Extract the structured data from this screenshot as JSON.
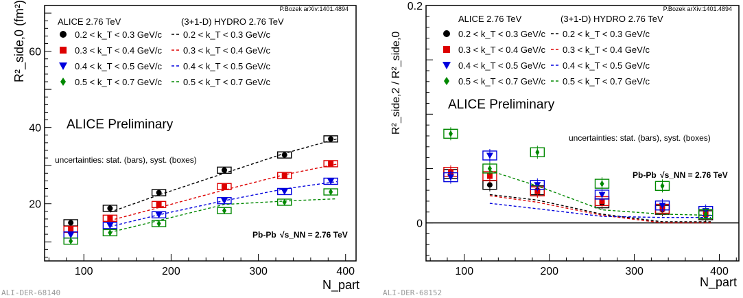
{
  "chart_data": [
    {
      "type": "scatter",
      "panel_id": "ALI-DER-68140",
      "attribution": "P.Bozek arXiv:1401.4894",
      "xlabel": "N_part",
      "ylabel": "R²_side,0 (fm²)",
      "xlim": [
        55,
        412
      ],
      "ylim": [
        5,
        72
      ],
      "xticks": [
        100,
        200,
        300,
        400
      ],
      "yticks": [
        20,
        40,
        60
      ],
      "legend_header_data": "ALICE 2.76 TeV",
      "legend_header_model": "(3+1-D) HYDRO 2.76 TeV",
      "preliminary": "ALICE Preliminary",
      "uncertainties": "uncertainties: stat. (bars), syst. (boxes)",
      "system_label": "Pb-Pb",
      "energy_label": "√s_NN = 2.76 TeV",
      "x": [
        85,
        130,
        186,
        261,
        330,
        383
      ],
      "series": [
        {
          "name": "0.2 < k_T < 0.3 GeV/c",
          "color": "#000000",
          "marker": "circle",
          "values": [
            15.0,
            18.8,
            22.9,
            28.8,
            32.8,
            37.0
          ],
          "model_x": [
            130,
            186,
            261,
            330,
            390
          ],
          "model": [
            17.8,
            22.3,
            28.0,
            33.2,
            37.0
          ]
        },
        {
          "name": "0.3 < k_T < 0.4 GeV/c",
          "color": "#dd0000",
          "marker": "square",
          "values": [
            13.3,
            16.2,
            19.8,
            24.5,
            27.4,
            30.5
          ],
          "model_x": [
            130,
            186,
            261,
            330,
            390
          ],
          "model": [
            15.6,
            19.0,
            23.6,
            27.6,
            30.4
          ]
        },
        {
          "name": "0.4 < k_T < 0.5 GeV/c",
          "color": "#0000dd",
          "marker": "triangle-down",
          "values": [
            11.8,
            14.3,
            17.1,
            20.8,
            23.2,
            25.9
          ],
          "model_x": [
            130,
            186,
            261,
            330,
            390
          ],
          "model": [
            14.0,
            17.1,
            20.8,
            23.9,
            25.8
          ]
        },
        {
          "name": "0.5 < k_T < 0.7 GeV/c",
          "color": "#008800",
          "marker": "diamond",
          "values": [
            10.2,
            12.4,
            14.8,
            18.2,
            20.4,
            23.1
          ],
          "model_x": [
            130,
            186,
            261,
            330,
            390
          ],
          "model": [
            12.5,
            15.6,
            19.8,
            20.7,
            21.3
          ]
        }
      ]
    },
    {
      "type": "scatter",
      "panel_id": "ALI-DER-68152",
      "attribution": "P.Bozek arXiv:1401.4894",
      "xlabel": "N_part",
      "ylabel": "R²_side,2 / R²_side,0",
      "xlim": [
        55,
        423
      ],
      "ylim": [
        -0.035,
        0.2
      ],
      "xticks": [
        100,
        200,
        300,
        400
      ],
      "yticks": [
        0,
        0.2
      ],
      "legend_header_data": "ALICE 2.76 TeV",
      "legend_header_model": "(3+1-D) HYDRO 2.76 TeV",
      "preliminary": "ALICE Preliminary",
      "uncertainties": "uncertainties: stat. (bars), syst. (boxes)",
      "system_label": "Pb-Pb",
      "energy_label": "√s_NN = 2.76 TeV",
      "x": [
        84,
        130,
        186,
        262,
        333,
        384
      ],
      "series": [
        {
          "name": "0.2 < k_T < 0.3 GeV/c",
          "color": "#000000",
          "marker": "circle",
          "values": [
            0.045,
            0.035,
            0.03,
            0.018,
            0.012,
            0.007
          ],
          "model_x": [
            130,
            186,
            262,
            333,
            390
          ],
          "model": [
            0.026,
            0.021,
            0.008,
            0.001,
            0.001
          ]
        },
        {
          "name": "0.3 < k_T < 0.4 GeV/c",
          "color": "#dd0000",
          "marker": "square",
          "values": [
            0.047,
            0.043,
            0.029,
            0.02,
            0.013,
            0.008
          ],
          "model_x": [
            130,
            186,
            262,
            333,
            390
          ],
          "model": [
            0.025,
            0.019,
            0.007,
            0.0,
            0.0
          ]
        },
        {
          "name": "0.4 < k_T < 0.5 GeV/c",
          "color": "#0000dd",
          "marker": "triangle-down",
          "values": [
            0.042,
            0.062,
            0.035,
            0.026,
            0.016,
            0.011
          ],
          "model_x": [
            130,
            186,
            262,
            333,
            390
          ],
          "model": [
            0.018,
            0.013,
            0.006,
            0.005,
            0.005
          ]
        },
        {
          "name": "0.5 < k_T < 0.7 GeV/c",
          "color": "#008800",
          "marker": "diamond",
          "values": [
            0.082,
            0.05,
            0.065,
            0.036,
            0.034,
            0.008
          ],
          "model_x": [
            130,
            186,
            262,
            333,
            390
          ],
          "model": [
            0.048,
            0.034,
            0.012,
            0.008,
            0.007
          ]
        }
      ]
    }
  ]
}
